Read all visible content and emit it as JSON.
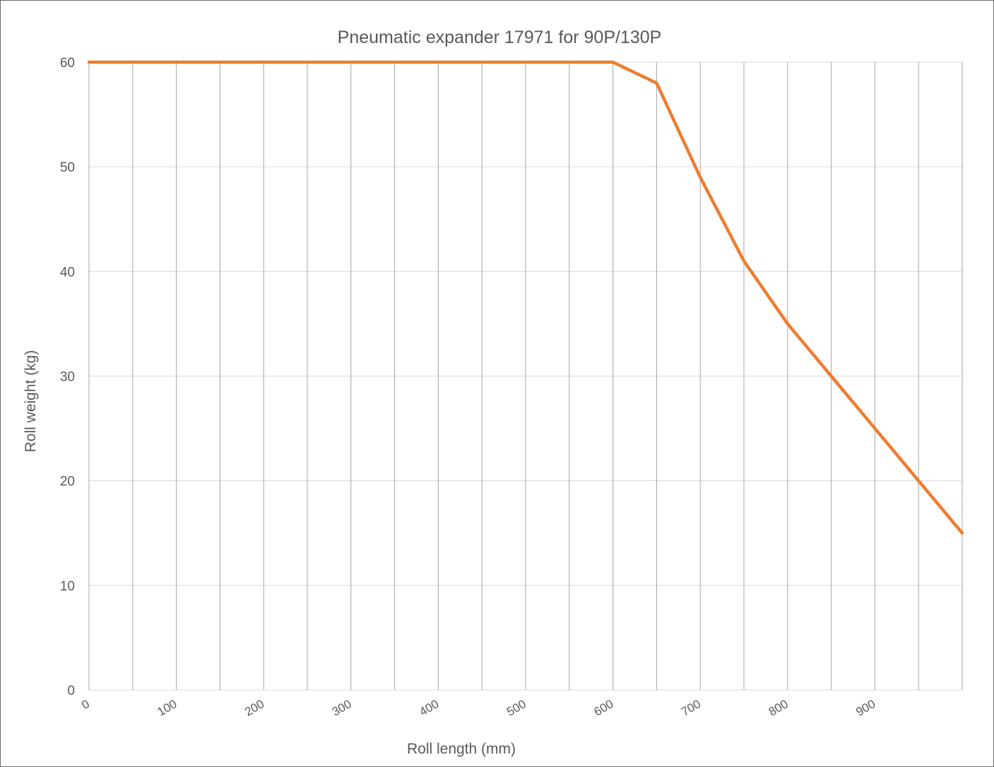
{
  "chart_data": {
    "type": "line",
    "title": "Pneumatic expander 17971 for 90P/130P",
    "xlabel": "Roll length (mm)",
    "ylabel": "Roll weight (kg)",
    "xlim": [
      0,
      1000
    ],
    "ylim": [
      0,
      60
    ],
    "x_ticks": [
      0,
      100,
      200,
      300,
      400,
      500,
      600,
      700,
      800,
      900
    ],
    "x_tick_labels": [
      "0",
      "100",
      "200",
      "300",
      "400",
      "500",
      "600",
      "700",
      "800",
      "900"
    ],
    "x_grid_step": 50,
    "y_ticks": [
      0,
      10,
      20,
      30,
      40,
      50,
      60
    ],
    "y_tick_labels": [
      "0",
      "10",
      "20",
      "30",
      "40",
      "50",
      "60"
    ],
    "grid": true,
    "legend": "none",
    "series": [
      {
        "color": "#ED7D31",
        "x": [
          0,
          50,
          100,
          150,
          200,
          250,
          300,
          350,
          400,
          450,
          500,
          550,
          600,
          650,
          700,
          750,
          800,
          850,
          900,
          950,
          1000
        ],
        "y": [
          60,
          60,
          60,
          60,
          60,
          60,
          60,
          60,
          60,
          60,
          60,
          60,
          60,
          58,
          49,
          41,
          35,
          30,
          25,
          20,
          15
        ]
      }
    ]
  }
}
